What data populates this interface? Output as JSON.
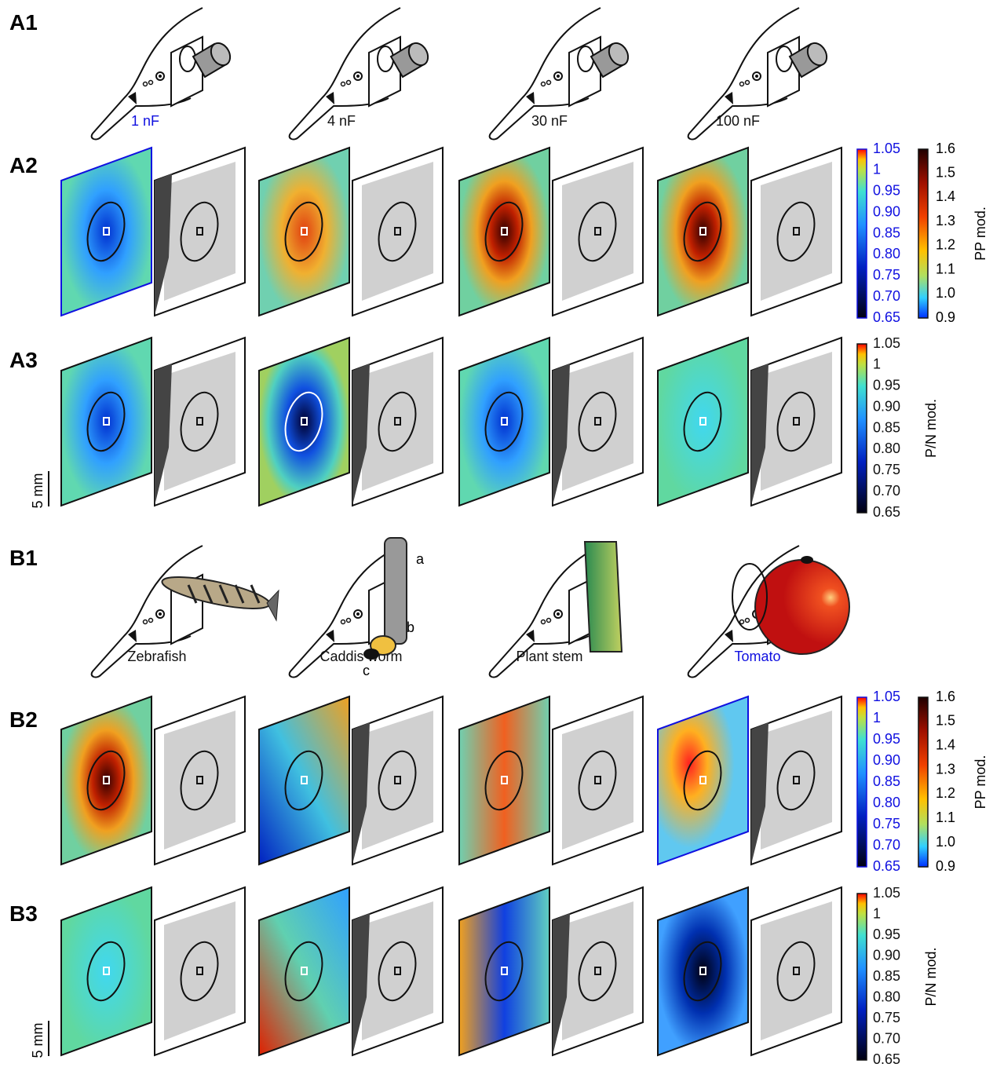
{
  "panel_labels": [
    "A1",
    "A2",
    "A3",
    "B1",
    "B2",
    "B3"
  ],
  "stimuli_a": [
    "1 nF",
    "4 nF",
    "30 nF",
    "100 nF"
  ],
  "stimuli_b": [
    "Zebrafish",
    "Caddis worm",
    "Plant stem",
    "Tomato"
  ],
  "caddis_parts": [
    "a",
    "b",
    "c"
  ],
  "colorbars": {
    "pn_ticks": [
      "1.05",
      "1",
      "0.95",
      "0.90",
      "0.85",
      "0.80",
      "0.75",
      "0.70",
      "0.65"
    ],
    "pp_ticks": [
      "1.6",
      "1.5",
      "1.4",
      "1.3",
      "1.2",
      "1.1",
      "1.0",
      "0.9"
    ],
    "pp_label": "PP mod.",
    "pn_label": "P/N mod."
  },
  "scale_bar": "5 mm"
}
